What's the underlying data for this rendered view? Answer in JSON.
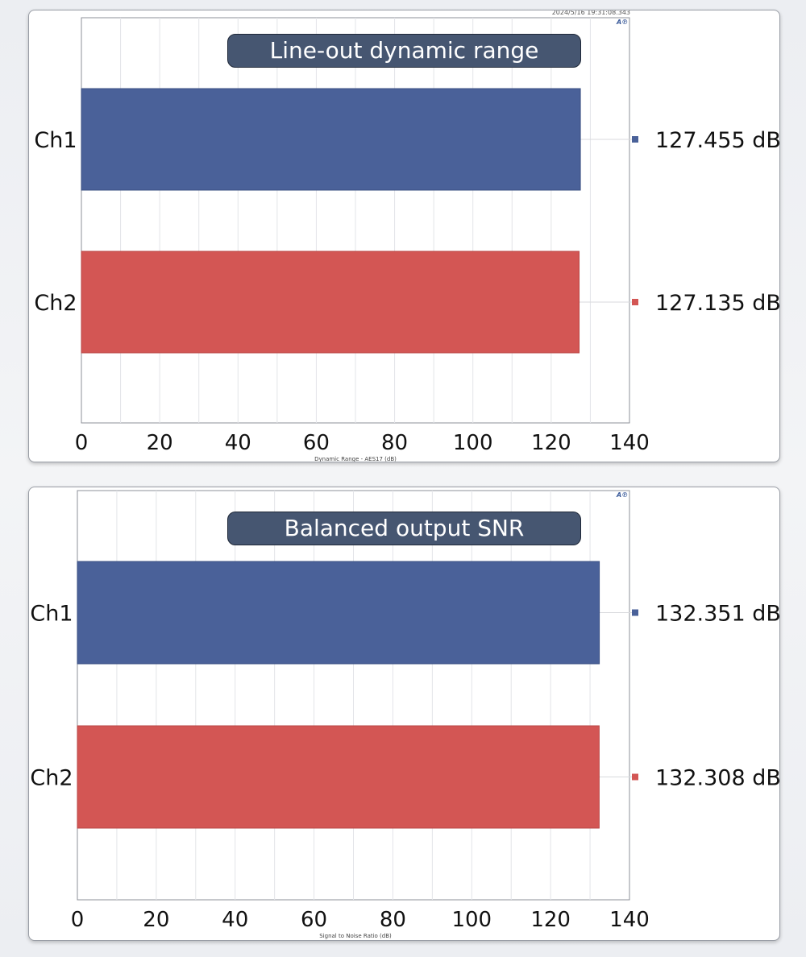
{
  "chart_data": [
    {
      "type": "bar",
      "orientation": "horizontal",
      "title": "Line-out dynamic range",
      "timestamp": "2024/5/16 19:31:08.343",
      "categories": [
        "Ch1",
        "Ch2"
      ],
      "values": [
        127.455,
        127.135
      ],
      "value_labels": [
        "127.455  dB",
        "127.135  dB"
      ],
      "colors": [
        "#4a6199",
        "#d35654"
      ],
      "xlabel": "Dynamic Range - AES17 (dB)",
      "xlim": [
        0,
        140
      ],
      "xticks": [
        "0",
        "20",
        "40",
        "60",
        "80",
        "100",
        "120",
        "140"
      ],
      "grid": true,
      "logo": "ap-logo-icon"
    },
    {
      "type": "bar",
      "orientation": "horizontal",
      "title": "Balanced output SNR",
      "categories": [
        "Ch1",
        "Ch2"
      ],
      "values": [
        132.351,
        132.308
      ],
      "value_labels": [
        "132.351  dB",
        "132.308  dB"
      ],
      "colors": [
        "#4a6199",
        "#d35654"
      ],
      "xlabel": "Signal to Noise Ratio (dB)",
      "xlim": [
        0,
        140
      ],
      "xticks": [
        "0",
        "20",
        "40",
        "60",
        "80",
        "100",
        "120",
        "140"
      ],
      "grid": true,
      "logo": "ap-logo-icon"
    }
  ]
}
